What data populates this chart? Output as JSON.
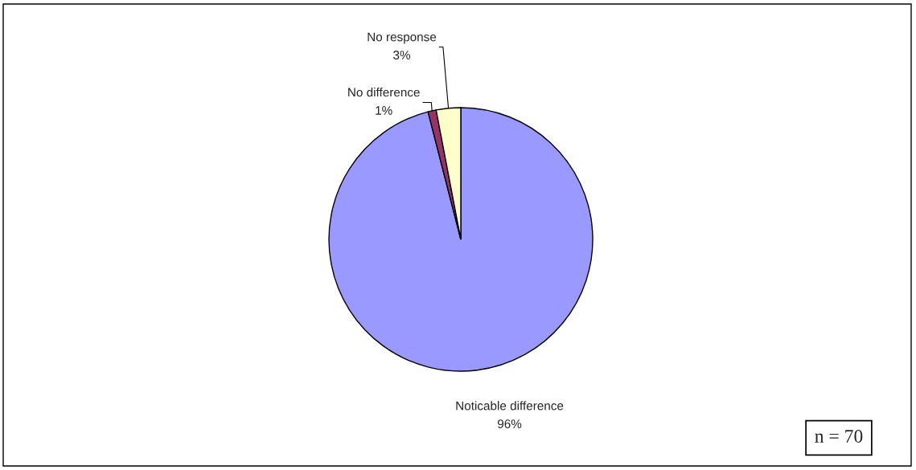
{
  "chart_data": {
    "type": "pie",
    "categories": [
      "Noticable difference",
      "No difference",
      "No response"
    ],
    "values": [
      96,
      1,
      3
    ],
    "colors": [
      "#9999ff",
      "#993366",
      "#ffffcc"
    ],
    "value_labels": [
      "96%",
      "1%",
      "3%"
    ],
    "annotations": [
      "n = 70"
    ]
  }
}
